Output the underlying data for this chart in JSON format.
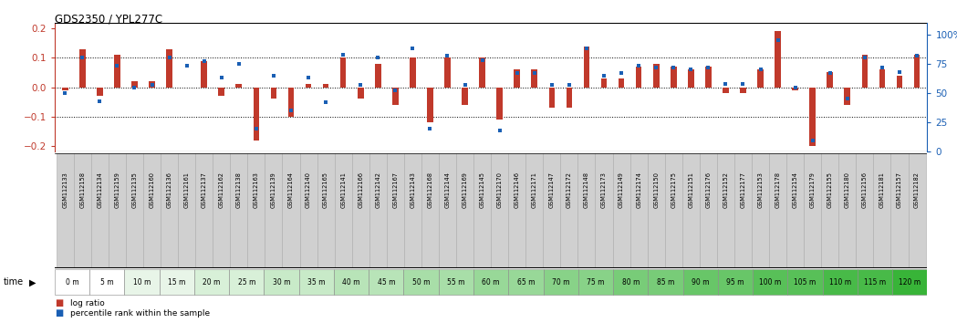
{
  "title": "GDS2350 / YPL277C",
  "x_labels": [
    "GSM112133",
    "GSM112158",
    "GSM112134",
    "GSM112159",
    "GSM112135",
    "GSM112160",
    "GSM112136",
    "GSM112161",
    "GSM112137",
    "GSM112162",
    "GSM112138",
    "GSM112163",
    "GSM112139",
    "GSM112164",
    "GSM112140",
    "GSM112165",
    "GSM112141",
    "GSM112166",
    "GSM112142",
    "GSM112167",
    "GSM112143",
    "GSM112168",
    "GSM112144",
    "GSM112169",
    "GSM112145",
    "GSM112170",
    "GSM112146",
    "GSM112171",
    "GSM112147",
    "GSM112172",
    "GSM112148",
    "GSM112173",
    "GSM112149",
    "GSM112174",
    "GSM112150",
    "GSM112175",
    "GSM112151",
    "GSM112176",
    "GSM112152",
    "GSM112177",
    "GSM112153",
    "GSM112178",
    "GSM112154",
    "GSM112179",
    "GSM112155",
    "GSM112180",
    "GSM112156",
    "GSM112181",
    "GSM112157",
    "GSM112182"
  ],
  "time_labels": [
    "0 m",
    "5 m",
    "10 m",
    "15 m",
    "20 m",
    "25 m",
    "30 m",
    "35 m",
    "40 m",
    "45 m",
    "50 m",
    "55 m",
    "60 m",
    "65 m",
    "70 m",
    "75 m",
    "80 m",
    "85 m",
    "90 m",
    "95 m",
    "100 m",
    "105 m",
    "110 m",
    "115 m",
    "120 m"
  ],
  "time_colors": [
    "#FFFFFF",
    "#FFFFFF",
    "#e8f8e8",
    "#e8f8e8",
    "#d0f0d0",
    "#d0f0d0",
    "#b8e8b8",
    "#b8e8b8",
    "#a0e0a0",
    "#a0e0a0",
    "#88d888",
    "#88d888",
    "#70d070",
    "#70d070",
    "#58c858",
    "#58c858",
    "#40c040",
    "#40c040",
    "#28b828",
    "#28b828",
    "#10b010",
    "#10b010",
    "#00a800",
    "#00a800",
    "#009800"
  ],
  "log_ratio": [
    -0.01,
    0.13,
    -0.03,
    0.11,
    0.02,
    0.02,
    0.13,
    0.0,
    0.09,
    -0.03,
    0.01,
    -0.18,
    -0.04,
    -0.1,
    0.01,
    0.01,
    0.1,
    -0.04,
    0.08,
    -0.06,
    0.1,
    -0.12,
    0.1,
    -0.06,
    0.1,
    -0.11,
    0.06,
    0.06,
    -0.07,
    -0.07,
    0.14,
    0.03,
    0.03,
    0.07,
    0.08,
    0.07,
    0.06,
    0.07,
    -0.02,
    -0.02,
    0.06,
    0.19,
    -0.01,
    -0.2,
    0.05,
    -0.06,
    0.11,
    0.06,
    0.04,
    0.11
  ],
  "percentile": [
    50,
    80,
    43,
    73,
    55,
    57,
    80,
    73,
    77,
    63,
    75,
    20,
    65,
    35,
    63,
    42,
    83,
    57,
    80,
    52,
    88,
    20,
    82,
    57,
    78,
    18,
    67,
    67,
    57,
    57,
    88,
    65,
    67,
    73,
    72,
    72,
    70,
    72,
    58,
    58,
    70,
    95,
    55,
    10,
    67,
    45,
    80,
    72,
    68,
    82
  ],
  "bar_color": "#C0392B",
  "dot_color": "#1a5fb4",
  "ylim": [
    -0.22,
    0.22
  ],
  "y2lim": [
    0,
    110
  ],
  "y_ticks": [
    -0.2,
    -0.1,
    0.0,
    0.1,
    0.2
  ],
  "y2_ticks": [
    0,
    25,
    50,
    75,
    100
  ],
  "dotted_lines": [
    -0.1,
    0.0,
    0.1
  ],
  "gsm_bg": "#d4d4d4",
  "time_row_bg_light": "#e8f5e8",
  "time_row_bg_dark": "#4caf50"
}
